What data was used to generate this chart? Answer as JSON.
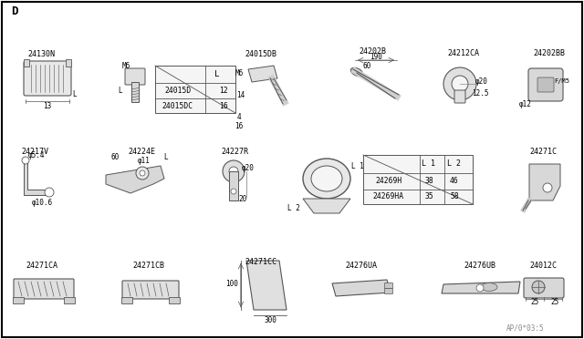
{
  "title": "D",
  "bg_color": "#ffffff",
  "border_color": "#000000",
  "line_color": "#555555",
  "text_color": "#000000",
  "watermark": "AP/0*03:5",
  "table1_rows": [
    [
      "24015D",
      "12"
    ],
    [
      "24015DC",
      "16"
    ]
  ],
  "table2_rows": [
    [
      "24269H",
      "38",
      "46"
    ],
    [
      "24269HA",
      "35",
      "58"
    ]
  ]
}
